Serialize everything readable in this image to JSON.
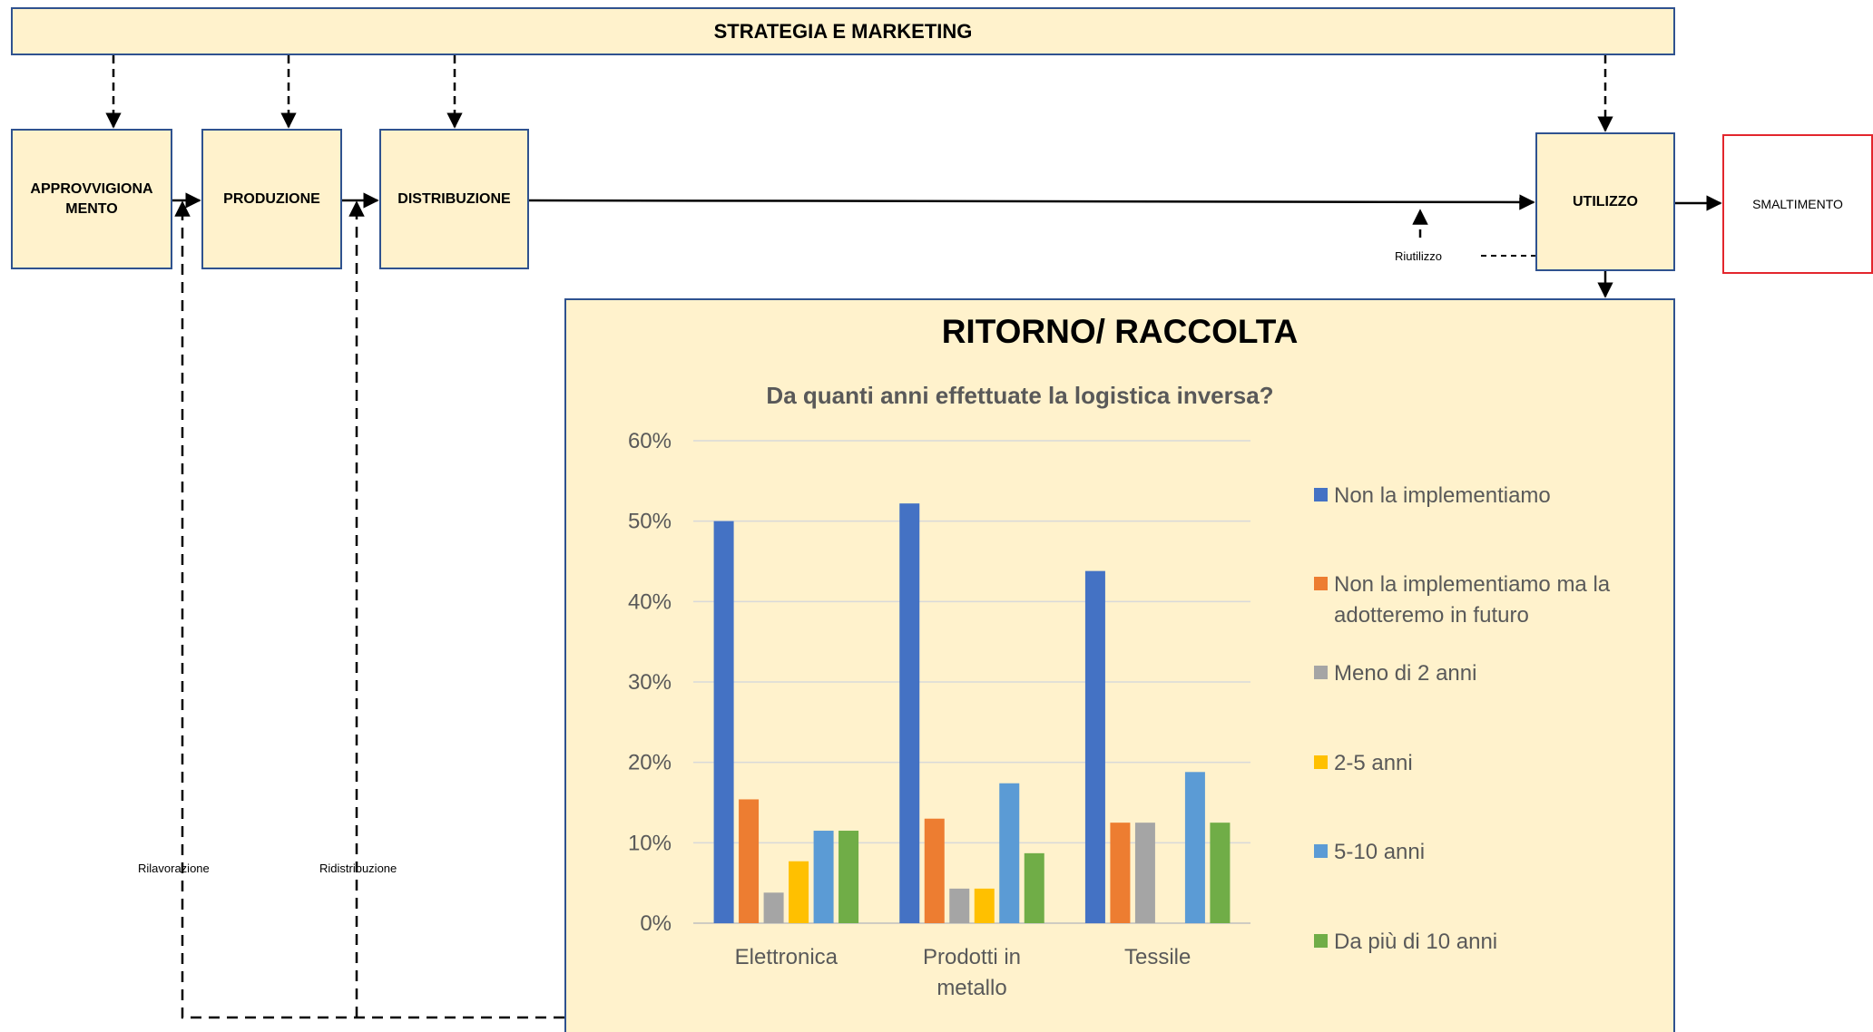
{
  "diagram": {
    "top_banner": "STRATEGIA E MARKETING",
    "boxes": {
      "approvvigionamento": "APPROVVIGIONA\nMENTO",
      "produzione": "PRODUZIONE",
      "distribuzione": "DISTRIBUZIONE",
      "utilizzo": "UTILIZZO",
      "smaltimento": "SMALTIMENTO"
    },
    "labels": {
      "riutilizzo": "Riutilizzo",
      "rilavorazione": "Rilavorazione",
      "ridistribuzione": "Ridistribuzione"
    },
    "panel_title": "RITORNO/ RACCOLTA"
  },
  "chart_data": {
    "type": "bar",
    "title": "Da quanti anni effettuate la logistica inversa?",
    "categories": [
      "Elettronica",
      "Prodotti in metallo",
      "Tessile"
    ],
    "series": [
      {
        "name": "Non la implementiamo",
        "color": "#4472c4",
        "values": [
          50.0,
          52.2,
          43.8
        ]
      },
      {
        "name": "Non la implementiamo ma la adotteremo in futuro",
        "color": "#ed7d31",
        "values": [
          15.4,
          13.0,
          12.5
        ]
      },
      {
        "name": "Meno di 2 anni",
        "color": "#a5a5a5",
        "values": [
          3.8,
          4.3,
          12.5
        ]
      },
      {
        "name": "2-5 anni",
        "color": "#ffc000",
        "values": [
          7.7,
          4.3,
          0
        ]
      },
      {
        "name": "5-10 anni",
        "color": "#5b9bd5",
        "values": [
          11.5,
          17.4,
          18.8
        ]
      },
      {
        "name": "Da più di 10 anni",
        "color": "#70ad47",
        "values": [
          11.5,
          8.7,
          12.5
        ]
      }
    ],
    "ylim": [
      0,
      60
    ],
    "yticks": [
      "0%",
      "10%",
      "20%",
      "30%",
      "40%",
      "50%",
      "60%"
    ],
    "grid": true,
    "legend_position": "right"
  }
}
